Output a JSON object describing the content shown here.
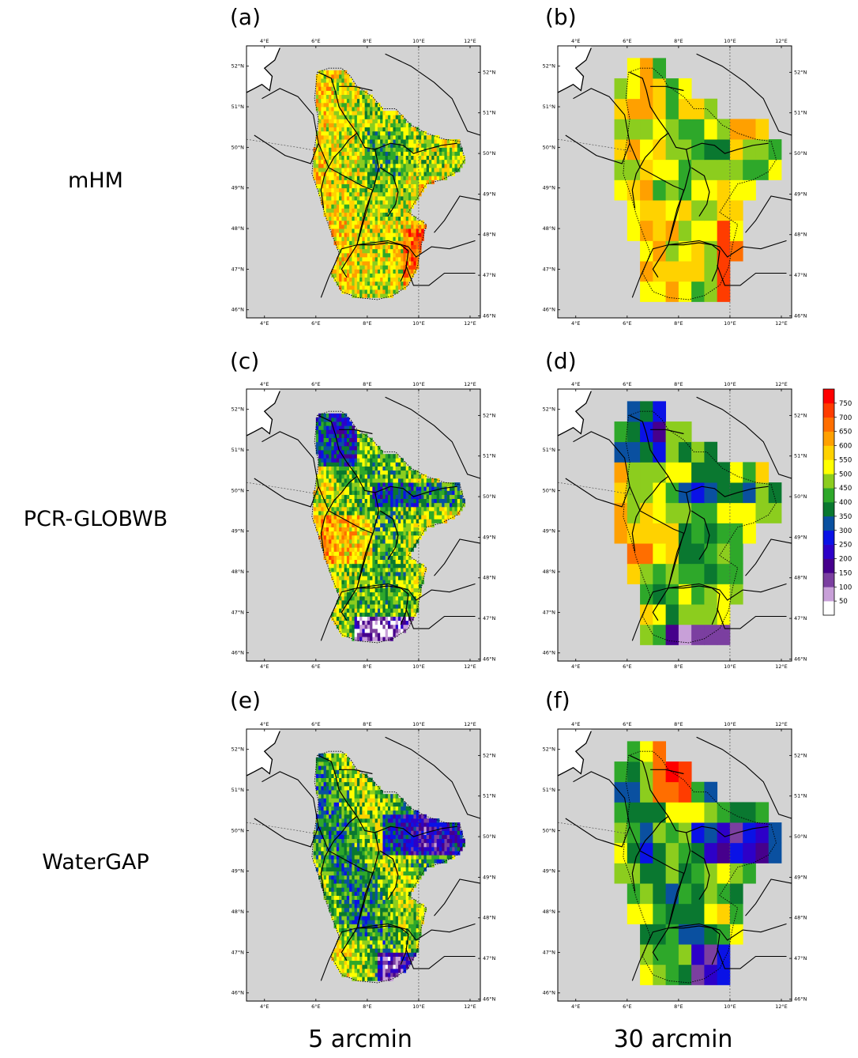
{
  "panels": [
    {
      "id": "a",
      "label": "(a)",
      "model": "mHM",
      "resolution": "5 arcmin"
    },
    {
      "id": "b",
      "label": "(b)",
      "model": "mHM",
      "resolution": "30 arcmin"
    },
    {
      "id": "c",
      "label": "(c)",
      "model": "PCR-GLOBWB",
      "resolution": "5 arcmin"
    },
    {
      "id": "d",
      "label": "(d)",
      "model": "PCR-GLOBWB",
      "resolution": "30 arcmin"
    },
    {
      "id": "e",
      "label": "(e)",
      "model": "WaterGAP",
      "resolution": "5 arcmin"
    },
    {
      "id": "f",
      "label": "(f)",
      "model": "WaterGAP",
      "resolution": "30 arcmin"
    }
  ],
  "row_labels": [
    "mHM",
    "PCR-GLOBWB",
    "WaterGAP"
  ],
  "column_labels": [
    "5 arcmin",
    "30 arcmin"
  ],
  "axes": {
    "lon_ticks": [
      "4°E",
      "6°E",
      "8°E",
      "10°E",
      "12°E"
    ],
    "lat_ticks": [
      "46°N",
      "47°N",
      "48°N",
      "49°N",
      "50°N",
      "51°N",
      "52°N"
    ]
  },
  "colorbar": {
    "tick_labels": [
      "50",
      "100",
      "150",
      "200",
      "250",
      "300",
      "350",
      "400",
      "450",
      "500",
      "550",
      "600",
      "650",
      "700",
      "750"
    ],
    "colors": [
      "#ffffff",
      "#c8a0d8",
      "#7b3fa0",
      "#46008c",
      "#2d00c8",
      "#0a12e6",
      "#0a50a0",
      "#0a7830",
      "#2ea82a",
      "#8ccd1e",
      "#ffff00",
      "#ffd200",
      "#ffa000",
      "#ff6e00",
      "#ff3c00",
      "#ff0000"
    ]
  },
  "colors": {
    "land_background": "#d3d3d3",
    "sea": "#ffffff"
  }
}
